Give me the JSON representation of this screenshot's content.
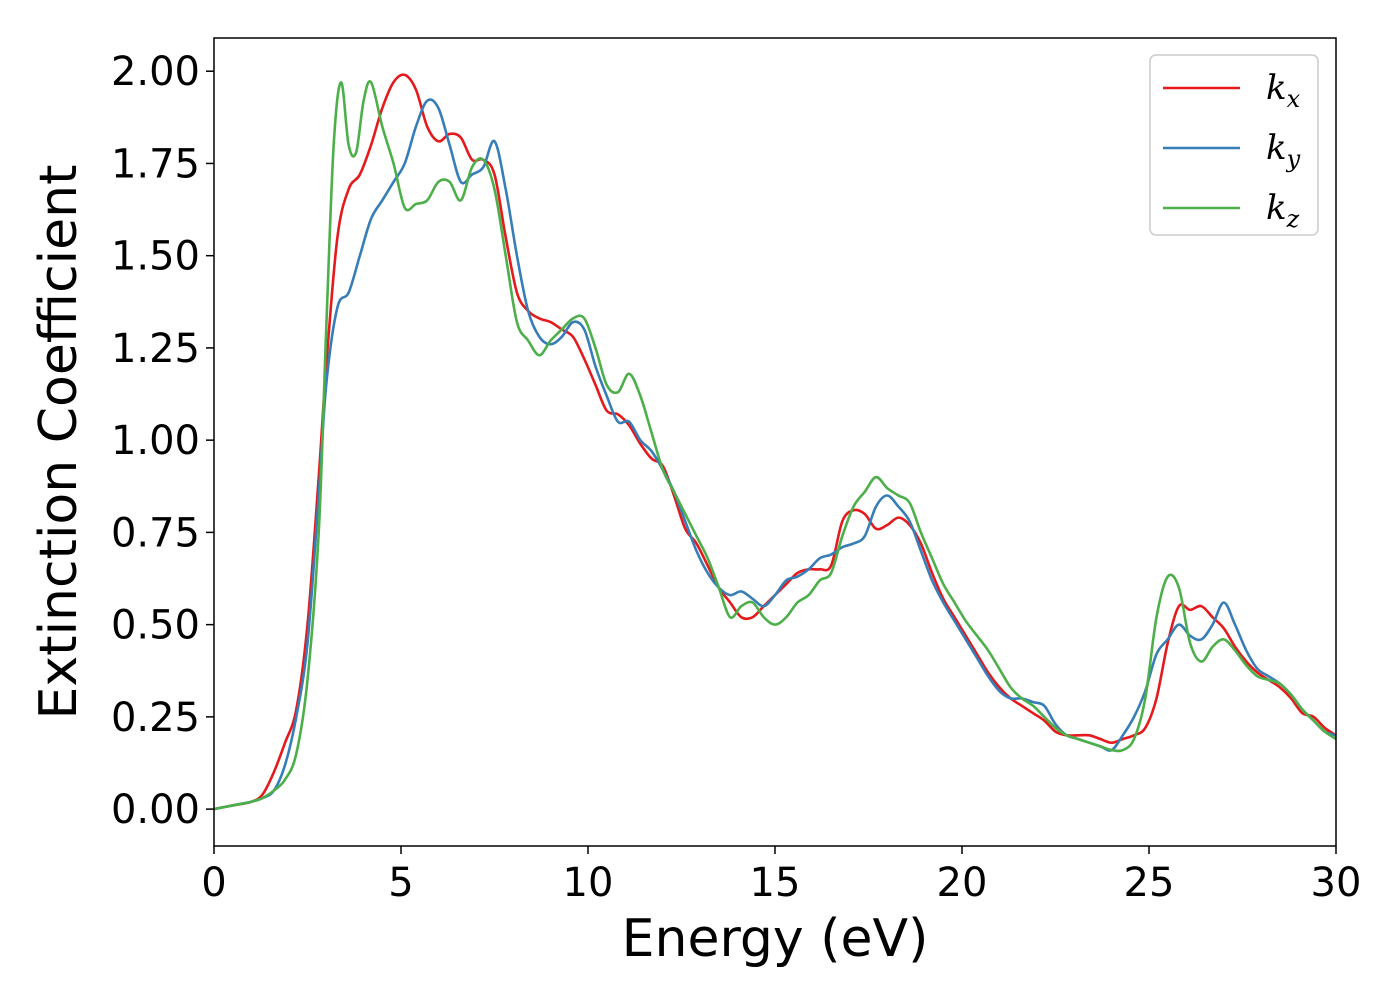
{
  "chart_data": {
    "type": "line",
    "title": "",
    "xlabel": "Energy (eV)",
    "ylabel": "Extinction Coefficient",
    "xlim": [
      0,
      30
    ],
    "ylim": [
      -0.1,
      2.09
    ],
    "xticks": [
      0,
      5,
      10,
      15,
      20,
      25,
      30
    ],
    "xtick_labels": [
      "0",
      "5",
      "10",
      "15",
      "20",
      "25",
      "30"
    ],
    "yticks": [
      0.0,
      0.25,
      0.5,
      0.75,
      1.0,
      1.25,
      1.5,
      1.75,
      2.0
    ],
    "ytick_labels": [
      "0.00",
      "0.25",
      "0.50",
      "0.75",
      "1.00",
      "1.25",
      "1.50",
      "1.75",
      "2.00"
    ],
    "grid": false,
    "legend_position": "top-right",
    "series": [
      {
        "name": "k_x",
        "legend_base": "k",
        "legend_sub": "x",
        "color": "#e41a1c",
        "x": [
          0,
          0.5,
          1.0,
          1.3,
          1.6,
          1.9,
          2.2,
          2.5,
          2.8,
          3.0,
          3.3,
          3.6,
          3.9,
          4.2,
          4.5,
          4.8,
          5.1,
          5.4,
          5.7,
          6.0,
          6.3,
          6.6,
          6.9,
          7.2,
          7.5,
          7.8,
          8.1,
          8.4,
          8.7,
          9.0,
          9.3,
          9.6,
          9.9,
          10.2,
          10.5,
          10.8,
          11.1,
          11.4,
          11.7,
          12.0,
          12.3,
          12.6,
          12.9,
          13.2,
          13.5,
          13.8,
          14.1,
          14.4,
          14.7,
          15.0,
          15.3,
          15.6,
          15.9,
          16.2,
          16.5,
          16.8,
          17.1,
          17.4,
          17.7,
          18.0,
          18.3,
          18.6,
          18.9,
          19.2,
          19.5,
          19.8,
          20.1,
          20.4,
          20.7,
          21.0,
          21.3,
          21.6,
          21.9,
          22.2,
          22.5,
          22.8,
          23.1,
          23.4,
          23.7,
          24.0,
          24.3,
          24.6,
          24.9,
          25.2,
          25.5,
          25.8,
          26.1,
          26.4,
          26.7,
          27.0,
          27.3,
          27.6,
          27.9,
          28.2,
          28.5,
          28.8,
          29.1,
          29.4,
          29.7,
          30.0
        ],
        "y": [
          0.0,
          0.01,
          0.02,
          0.04,
          0.1,
          0.18,
          0.27,
          0.5,
          0.9,
          1.2,
          1.55,
          1.68,
          1.72,
          1.8,
          1.9,
          1.97,
          1.99,
          1.95,
          1.85,
          1.81,
          1.83,
          1.82,
          1.76,
          1.76,
          1.72,
          1.55,
          1.4,
          1.35,
          1.33,
          1.32,
          1.3,
          1.28,
          1.22,
          1.15,
          1.08,
          1.07,
          1.04,
          0.99,
          0.95,
          0.93,
          0.85,
          0.76,
          0.72,
          0.66,
          0.6,
          0.56,
          0.52,
          0.52,
          0.55,
          0.58,
          0.61,
          0.64,
          0.65,
          0.65,
          0.66,
          0.78,
          0.81,
          0.8,
          0.76,
          0.77,
          0.79,
          0.77,
          0.72,
          0.64,
          0.57,
          0.52,
          0.47,
          0.42,
          0.37,
          0.33,
          0.3,
          0.28,
          0.26,
          0.24,
          0.21,
          0.2,
          0.2,
          0.2,
          0.19,
          0.18,
          0.19,
          0.2,
          0.22,
          0.3,
          0.45,
          0.55,
          0.54,
          0.55,
          0.52,
          0.49,
          0.44,
          0.4,
          0.37,
          0.35,
          0.33,
          0.3,
          0.26,
          0.25,
          0.22,
          0.2
        ]
      },
      {
        "name": "k_y",
        "legend_base": "k",
        "legend_sub": "y",
        "color": "#377eb8",
        "x": [
          0,
          0.5,
          1.0,
          1.3,
          1.6,
          1.9,
          2.2,
          2.5,
          2.8,
          3.0,
          3.3,
          3.6,
          3.9,
          4.2,
          4.5,
          4.8,
          5.1,
          5.4,
          5.7,
          6.0,
          6.3,
          6.6,
          6.9,
          7.2,
          7.5,
          7.8,
          8.1,
          8.4,
          8.7,
          9.0,
          9.3,
          9.6,
          9.9,
          10.2,
          10.5,
          10.8,
          11.1,
          11.4,
          11.7,
          12.0,
          12.3,
          12.6,
          12.9,
          13.2,
          13.5,
          13.8,
          14.1,
          14.4,
          14.7,
          15.0,
          15.3,
          15.6,
          15.9,
          16.2,
          16.5,
          16.8,
          17.1,
          17.4,
          17.7,
          18.0,
          18.3,
          18.6,
          18.9,
          19.2,
          19.5,
          19.8,
          20.1,
          20.4,
          20.7,
          21.0,
          21.3,
          21.6,
          21.9,
          22.2,
          22.5,
          22.8,
          23.1,
          23.4,
          23.7,
          24.0,
          24.3,
          24.6,
          24.9,
          25.2,
          25.5,
          25.8,
          26.1,
          26.4,
          26.7,
          27.0,
          27.3,
          27.6,
          27.9,
          28.2,
          28.5,
          28.8,
          29.1,
          29.4,
          29.7,
          30.0
        ],
        "y": [
          0.0,
          0.01,
          0.02,
          0.03,
          0.05,
          0.12,
          0.25,
          0.45,
          0.85,
          1.15,
          1.36,
          1.4,
          1.5,
          1.6,
          1.65,
          1.7,
          1.75,
          1.85,
          1.92,
          1.9,
          1.8,
          1.7,
          1.72,
          1.74,
          1.81,
          1.68,
          1.5,
          1.35,
          1.28,
          1.26,
          1.28,
          1.32,
          1.3,
          1.2,
          1.12,
          1.05,
          1.05,
          1.0,
          0.97,
          0.92,
          0.86,
          0.78,
          0.7,
          0.64,
          0.6,
          0.58,
          0.59,
          0.57,
          0.55,
          0.58,
          0.62,
          0.63,
          0.65,
          0.68,
          0.69,
          0.71,
          0.72,
          0.74,
          0.82,
          0.85,
          0.82,
          0.78,
          0.7,
          0.62,
          0.56,
          0.51,
          0.46,
          0.41,
          0.36,
          0.32,
          0.3,
          0.3,
          0.29,
          0.28,
          0.23,
          0.2,
          0.19,
          0.18,
          0.17,
          0.16,
          0.2,
          0.25,
          0.32,
          0.42,
          0.46,
          0.5,
          0.47,
          0.46,
          0.5,
          0.56,
          0.5,
          0.43,
          0.38,
          0.36,
          0.34,
          0.31,
          0.27,
          0.24,
          0.21,
          0.2
        ]
      },
      {
        "name": "k_z",
        "legend_base": "k",
        "legend_sub": "z",
        "color": "#4daf4a",
        "x": [
          0,
          0.5,
          1.0,
          1.3,
          1.6,
          1.9,
          2.2,
          2.5,
          2.8,
          3.0,
          3.2,
          3.4,
          3.6,
          3.8,
          4.0,
          4.2,
          4.5,
          4.8,
          5.1,
          5.4,
          5.7,
          6.0,
          6.3,
          6.6,
          6.9,
          7.2,
          7.5,
          7.8,
          8.1,
          8.4,
          8.7,
          9.0,
          9.3,
          9.6,
          9.9,
          10.2,
          10.5,
          10.8,
          11.1,
          11.4,
          11.7,
          12.0,
          12.3,
          12.6,
          12.9,
          13.2,
          13.5,
          13.8,
          14.1,
          14.4,
          14.7,
          15.0,
          15.3,
          15.6,
          15.9,
          16.2,
          16.5,
          16.8,
          17.1,
          17.4,
          17.7,
          18.0,
          18.3,
          18.6,
          18.9,
          19.2,
          19.5,
          19.8,
          20.1,
          20.4,
          20.7,
          21.0,
          21.3,
          21.6,
          21.9,
          22.2,
          22.5,
          22.8,
          23.1,
          23.4,
          23.7,
          24.0,
          24.3,
          24.6,
          24.9,
          25.2,
          25.5,
          25.8,
          26.1,
          26.4,
          26.7,
          27.0,
          27.3,
          27.6,
          27.9,
          28.2,
          28.5,
          28.8,
          29.1,
          29.4,
          29.7,
          30.0
        ],
        "y": [
          0.0,
          0.01,
          0.02,
          0.03,
          0.05,
          0.08,
          0.15,
          0.35,
          0.75,
          1.3,
          1.8,
          1.97,
          1.8,
          1.78,
          1.92,
          1.97,
          1.85,
          1.75,
          1.63,
          1.64,
          1.65,
          1.7,
          1.7,
          1.65,
          1.74,
          1.76,
          1.68,
          1.5,
          1.32,
          1.27,
          1.23,
          1.27,
          1.3,
          1.33,
          1.33,
          1.25,
          1.15,
          1.13,
          1.18,
          1.12,
          1.02,
          0.92,
          0.86,
          0.8,
          0.74,
          0.68,
          0.6,
          0.52,
          0.55,
          0.56,
          0.52,
          0.5,
          0.52,
          0.56,
          0.58,
          0.62,
          0.64,
          0.74,
          0.82,
          0.86,
          0.9,
          0.87,
          0.85,
          0.83,
          0.75,
          0.68,
          0.61,
          0.56,
          0.51,
          0.47,
          0.43,
          0.38,
          0.33,
          0.3,
          0.28,
          0.25,
          0.22,
          0.2,
          0.19,
          0.18,
          0.17,
          0.16,
          0.16,
          0.19,
          0.3,
          0.52,
          0.63,
          0.6,
          0.45,
          0.4,
          0.44,
          0.46,
          0.43,
          0.39,
          0.36,
          0.35,
          0.34,
          0.31,
          0.27,
          0.24,
          0.21,
          0.19
        ]
      }
    ]
  }
}
